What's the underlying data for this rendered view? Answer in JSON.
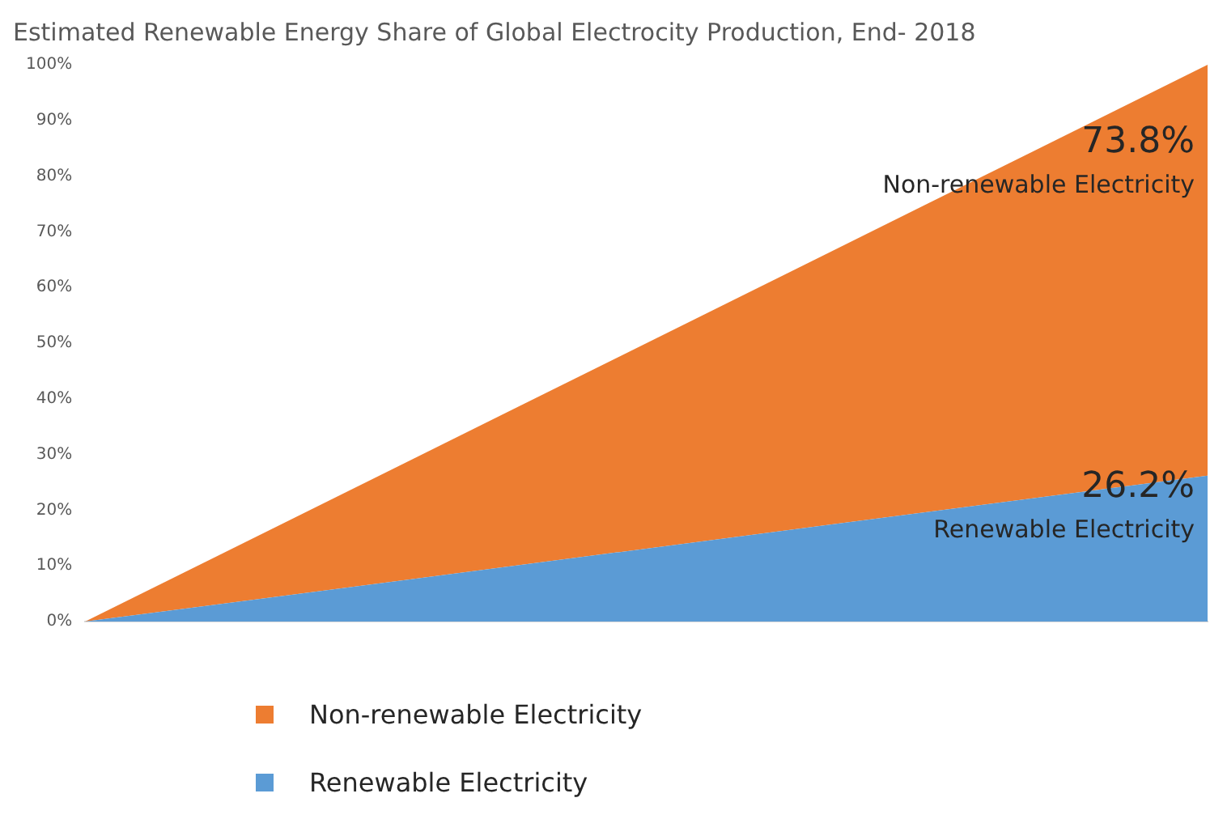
{
  "chart_data": {
    "type": "area",
    "title": "Estimated Renewable Energy Share of Global Electrocity Production, End- 2018",
    "categories": [
      null,
      null
    ],
    "stacked": true,
    "series": [
      {
        "name": "Renewable Electricity",
        "color": "#5b9bd5",
        "values": [
          0,
          26.2
        ],
        "value_labels": [
          null,
          "26.2%"
        ]
      },
      {
        "name": "Non-renewable Electricity",
        "color": "#ed7d31",
        "values": [
          0,
          73.8
        ],
        "value_labels": [
          null,
          "73.8%"
        ]
      }
    ],
    "ylim": [
      0,
      100
    ],
    "yticks": [
      {
        "value": 0,
        "label": "0%"
      },
      {
        "value": 10,
        "label": "10%"
      },
      {
        "value": 20,
        "label": "20%"
      },
      {
        "value": 30,
        "label": "30%"
      },
      {
        "value": 40,
        "label": "40%"
      },
      {
        "value": 50,
        "label": "50%"
      },
      {
        "value": 60,
        "label": "60%"
      },
      {
        "value": 70,
        "label": "70%"
      },
      {
        "value": 80,
        "label": "80%"
      },
      {
        "value": 90,
        "label": "90%"
      },
      {
        "value": 100,
        "label": "100%"
      }
    ],
    "tick_labels": "y",
    "grid": false,
    "legend": "bottom"
  }
}
